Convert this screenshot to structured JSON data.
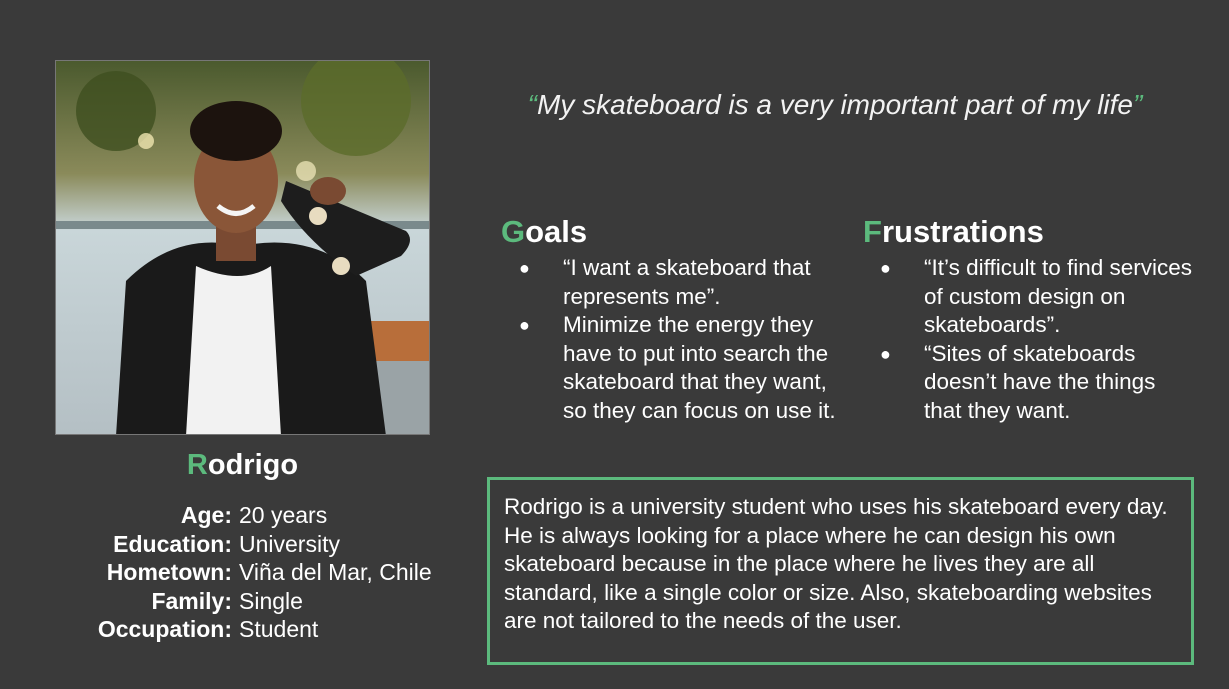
{
  "persona": {
    "name_initial": "R",
    "name_rest": "odrigo",
    "details": [
      {
        "label": "Age:",
        "value": "20 years"
      },
      {
        "label": "Education:",
        "value": "University"
      },
      {
        "label": "Hometown:",
        "value": "Viña del Mar, Chile"
      },
      {
        "label": "Family:",
        "value": "Single"
      },
      {
        "label": "Occupation:",
        "value": "Student"
      }
    ]
  },
  "quote": {
    "open": "“",
    "text": "My skateboard is a very important part of my life",
    "close": "”"
  },
  "goals": {
    "initial": "G",
    "rest": "oals",
    "items": [
      "“I want a skateboard that represents me”.",
      "Minimize the energy they have to put into search the skateboard that they want, so they can focus on use it."
    ]
  },
  "frustrations": {
    "initial": "F",
    "rest": "rustrations",
    "items": [
      "“It’s difficult to find services of custom design on skateboards”.",
      "“Sites of skateboards doesn’t have the things that they want."
    ]
  },
  "summary": "Rodrigo is a university student who uses his skateboard every day. He is always looking for a place where he can design his own skateboard because in the place where he lives they are all standard, like a single color or size. Also, skateboarding websites are not tailored to the needs of the user.",
  "colors": {
    "background": "#3a3a3a",
    "accent": "#5cba7d",
    "text": "#ffffff"
  },
  "bullet_glyph": "●"
}
